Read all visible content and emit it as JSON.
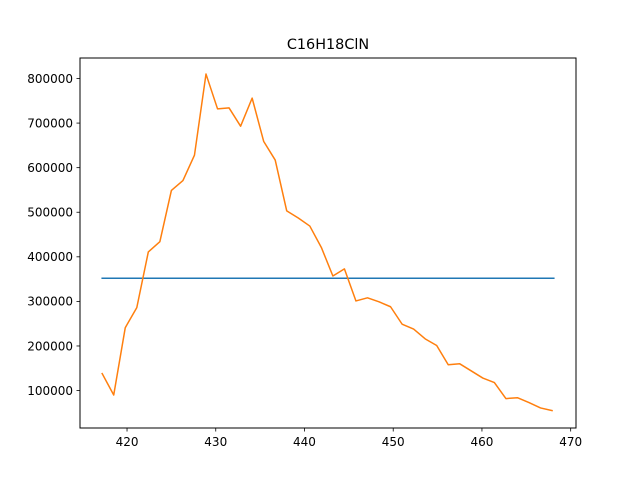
{
  "chart_data": {
    "type": "line",
    "title": "C16H18ClN",
    "xlabel": "",
    "ylabel": "",
    "xlim": [
      414.7,
      470.6
    ],
    "ylim": [
      16000,
      846000
    ],
    "x_ticks": [
      420,
      430,
      440,
      450,
      460,
      470
    ],
    "x_tick_labels": [
      "420",
      "430",
      "440",
      "450",
      "460",
      "470"
    ],
    "y_ticks": [
      100000,
      200000,
      300000,
      400000,
      500000,
      600000,
      700000,
      800000
    ],
    "y_tick_labels": [
      "100000",
      "200000",
      "300000",
      "400000",
      "500000",
      "600000",
      "700000",
      "800000"
    ],
    "grid": false,
    "series": [
      {
        "color": "#1f77b4",
        "x": [
          417.2,
          468.1
        ],
        "y": [
          352000,
          352000
        ]
      },
      {
        "color": "#ff7f0e",
        "x": [
          417.2,
          418.5,
          419.8,
          421.1,
          422.4,
          423.7,
          425.0,
          426.3,
          427.6,
          428.9,
          430.2,
          431.5,
          432.8,
          434.1,
          435.4,
          436.7,
          438.0,
          439.3,
          440.6,
          441.9,
          443.2,
          444.5,
          445.8,
          447.1,
          448.4,
          449.7,
          451.0,
          452.3,
          453.6,
          454.9,
          456.2,
          457.5,
          458.8,
          460.1,
          461.4,
          462.7,
          464.0,
          465.3,
          466.6,
          467.9
        ],
        "y": [
          138000,
          90000,
          241000,
          286000,
          411000,
          434000,
          549000,
          571000,
          628000,
          810000,
          732000,
          734000,
          693000,
          756000,
          659000,
          617000,
          503000,
          487000,
          469000,
          421000,
          357000,
          373000,
          301000,
          308000,
          299000,
          288000,
          249000,
          238000,
          216000,
          201000,
          158000,
          160000,
          144000,
          128000,
          118000,
          82000,
          84000,
          73000,
          61000,
          55000
        ]
      }
    ]
  }
}
